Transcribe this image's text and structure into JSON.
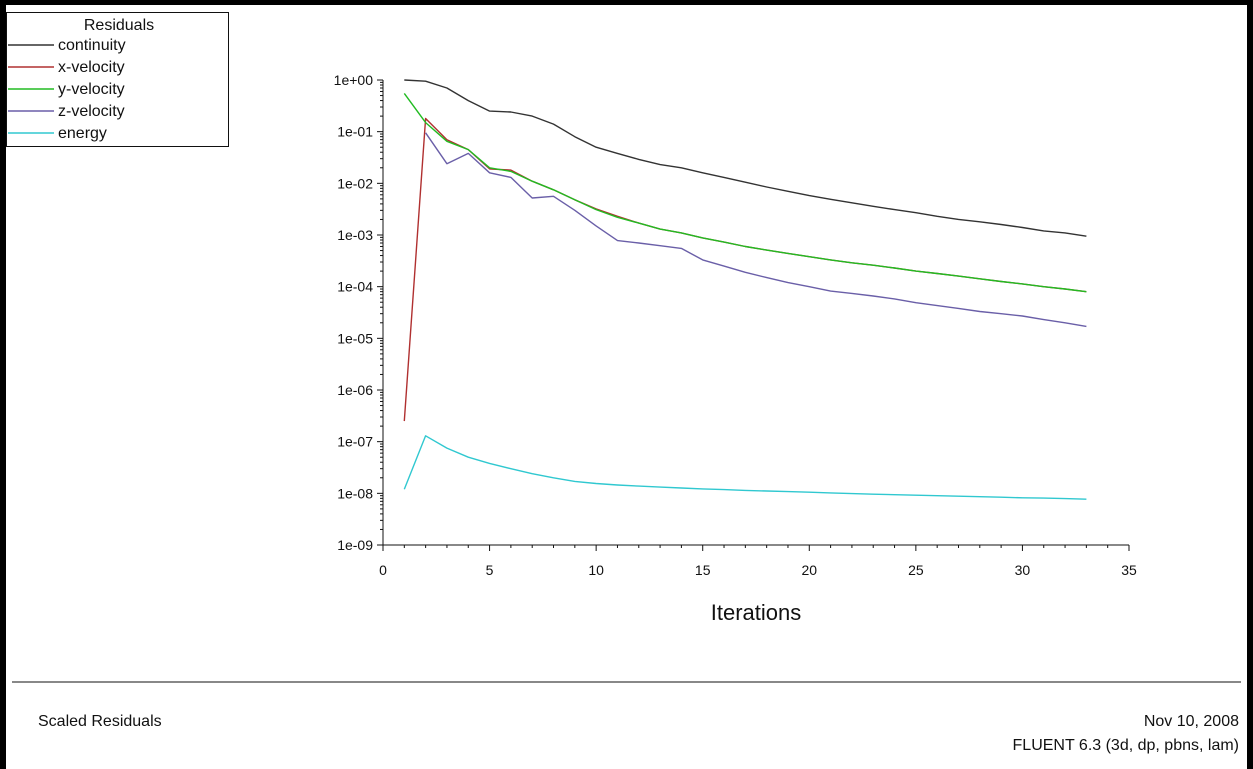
{
  "footer": {
    "left_label": "Scaled Residuals",
    "date": "Nov 10, 2008",
    "version": "FLUENT 6.3 (3d, dp, pbns, lam)"
  },
  "chart_data": {
    "type": "line",
    "title": "",
    "xlabel": "Iterations",
    "ylabel": "",
    "xlim": [
      0,
      35
    ],
    "ylim": [
      1e-09,
      1
    ],
    "yscale": "log",
    "x_ticks": [
      "0",
      "5",
      "10",
      "15",
      "20",
      "25",
      "30",
      "35"
    ],
    "y_ticks": [
      "1e+00",
      "1e-01",
      "1e-02",
      "1e-03",
      "1e-04",
      "1e-05",
      "1e-06",
      "1e-07",
      "1e-08",
      "1e-09"
    ],
    "legend": {
      "title": "Residuals",
      "placement": "top-left"
    },
    "series": [
      {
        "name": "continuity",
        "color": "#333333",
        "x": [
          1,
          2,
          3,
          4,
          5,
          6,
          7,
          8,
          9,
          10,
          11,
          12,
          13,
          14,
          15,
          16,
          17,
          18,
          19,
          20,
          21,
          22,
          23,
          24,
          25,
          26,
          27,
          28,
          29,
          30,
          31,
          32,
          33
        ],
        "y": [
          1.0,
          0.95,
          0.7,
          0.4,
          0.25,
          0.24,
          0.2,
          0.14,
          0.08,
          0.05,
          0.038,
          0.029,
          0.023,
          0.02,
          0.016,
          0.013,
          0.0105,
          0.0085,
          0.007,
          0.0058,
          0.0049,
          0.0042,
          0.0036,
          0.0031,
          0.0027,
          0.0023,
          0.002,
          0.0018,
          0.0016,
          0.0014,
          0.0012,
          0.0011,
          0.00095
        ]
      },
      {
        "name": "x-velocity",
        "color": "#b03030",
        "x": [
          1,
          2,
          3,
          4,
          5,
          6,
          7,
          8,
          9,
          10,
          11,
          12,
          13,
          14,
          15,
          16,
          17,
          18,
          19,
          20,
          21,
          22,
          23,
          24,
          25,
          26,
          27,
          28,
          29,
          30,
          31,
          32,
          33
        ],
        "y": [
          2.5e-07,
          0.18,
          0.07,
          0.045,
          0.019,
          0.018,
          0.011,
          0.0075,
          0.0048,
          0.0032,
          0.0023,
          0.0017,
          0.0013,
          0.0011,
          0.00088,
          0.00073,
          0.0006,
          0.00051,
          0.00044,
          0.00038,
          0.00033,
          0.00029,
          0.00026,
          0.00023,
          0.0002,
          0.00018,
          0.00016,
          0.000142,
          0.000126,
          0.000113,
          0.0001,
          9e-05,
          8e-05
        ]
      },
      {
        "name": "y-velocity",
        "color": "#22bb22",
        "x": [
          1,
          2,
          3,
          4,
          5,
          6,
          7,
          8,
          9,
          10,
          11,
          12,
          13,
          14,
          15,
          16,
          17,
          18,
          19,
          20,
          21,
          22,
          23,
          24,
          25,
          26,
          27,
          28,
          29,
          30,
          31,
          32,
          33
        ],
        "y": [
          0.55,
          0.15,
          0.065,
          0.045,
          0.02,
          0.017,
          0.011,
          0.0075,
          0.0048,
          0.0031,
          0.0022,
          0.0017,
          0.0013,
          0.0011,
          0.00088,
          0.00073,
          0.0006,
          0.00051,
          0.00044,
          0.00038,
          0.00033,
          0.00029,
          0.00026,
          0.00023,
          0.0002,
          0.00018,
          0.00016,
          0.000142,
          0.000126,
          0.000113,
          0.0001,
          9e-05,
          8e-05
        ]
      },
      {
        "name": "z-velocity",
        "color": "#6a5fa8",
        "x": [
          1,
          2,
          3,
          4,
          5,
          6,
          7,
          8,
          9,
          10,
          11,
          12,
          13,
          14,
          15,
          16,
          17,
          18,
          19,
          20,
          21,
          22,
          23,
          24,
          25,
          26,
          27,
          28,
          29,
          30,
          31,
          32,
          33
        ],
        "y": [
          null,
          0.095,
          0.024,
          0.038,
          0.016,
          0.013,
          0.0052,
          0.0056,
          0.003,
          0.0015,
          0.00078,
          0.0007,
          0.00062,
          0.00055,
          0.00033,
          0.00025,
          0.00019,
          0.00015,
          0.00012,
          0.0001,
          8.2e-05,
          7.4e-05,
          6.6e-05,
          5.8e-05,
          4.9e-05,
          4.3e-05,
          3.8e-05,
          3.3e-05,
          3e-05,
          2.7e-05,
          2.3e-05,
          2e-05,
          1.7e-05
        ]
      },
      {
        "name": "energy",
        "color": "#30c8d0",
        "x": [
          1,
          2,
          3,
          4,
          5,
          6,
          7,
          8,
          9,
          10,
          11,
          12,
          13,
          14,
          15,
          16,
          17,
          18,
          19,
          20,
          21,
          22,
          23,
          24,
          25,
          26,
          27,
          28,
          29,
          30,
          31,
          32,
          33
        ],
        "y": [
          1.2e-08,
          1.3e-07,
          7.5e-08,
          5e-08,
          3.8e-08,
          3e-08,
          2.4e-08,
          2e-08,
          1.7e-08,
          1.55e-08,
          1.45e-08,
          1.38e-08,
          1.32e-08,
          1.27e-08,
          1.22e-08,
          1.18e-08,
          1.14e-08,
          1.11e-08,
          1.08e-08,
          1.05e-08,
          1.02e-08,
          9.9e-09,
          9.6e-09,
          9.4e-09,
          9.2e-09,
          9e-09,
          8.8e-09,
          8.6e-09,
          8.4e-09,
          8.2e-09,
          8.1e-09,
          7.9e-09,
          7.7e-09
        ]
      }
    ]
  }
}
